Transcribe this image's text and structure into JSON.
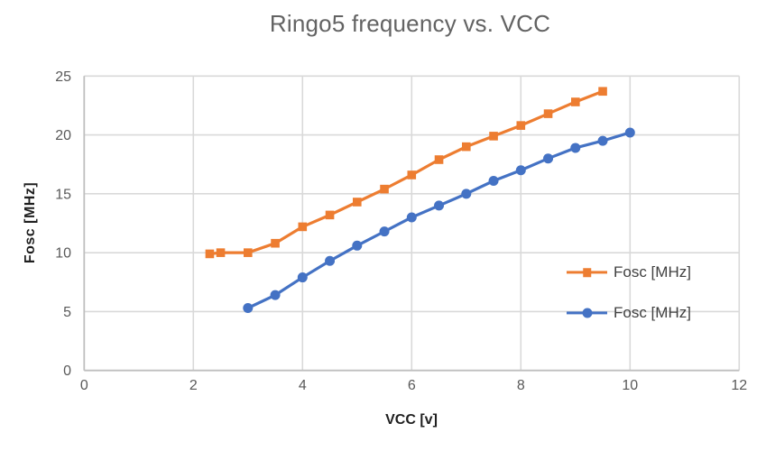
{
  "chart_data": {
    "type": "line",
    "title": "Ringo5 frequency vs. VCC",
    "xlabel": "VCC [v]",
    "ylabel": "Fosc [MHz]",
    "xlim": [
      0,
      12
    ],
    "ylim": [
      0,
      25
    ],
    "x_ticks": [
      0,
      2,
      4,
      6,
      8,
      10,
      12
    ],
    "y_ticks": [
      0,
      5,
      10,
      15,
      20,
      25
    ],
    "grid": true,
    "legend_position": "inside-right",
    "series": [
      {
        "name": "Fosc [MHz]",
        "marker": "square",
        "color": "#ED7D31",
        "x": [
          2.3,
          2.5,
          3,
          3.5,
          4,
          4.5,
          5,
          5.5,
          6,
          6.5,
          7,
          7.5,
          8,
          8.5,
          9,
          9.5
        ],
        "y": [
          9.9,
          10.0,
          10.0,
          10.8,
          12.2,
          13.2,
          14.3,
          15.4,
          16.6,
          17.9,
          19.0,
          19.9,
          20.8,
          21.8,
          22.8,
          23.7
        ]
      },
      {
        "name": "Fosc [MHz]",
        "marker": "circle",
        "color": "#4472C4",
        "x": [
          3,
          3.5,
          4,
          4.5,
          5,
          5.5,
          6,
          6.5,
          7,
          7.5,
          8,
          8.5,
          9,
          9.5,
          10
        ],
        "y": [
          5.3,
          6.4,
          7.9,
          9.3,
          10.6,
          11.8,
          13.0,
          14.0,
          15.0,
          16.1,
          17.0,
          18.0,
          18.9,
          19.5,
          20.2
        ]
      }
    ],
    "colors": {
      "gridline": "#D9D9D9",
      "axis_line": "#BFBFBF",
      "tick_label": "#595959",
      "title": "#636363",
      "axis_title": "#1F1F1F",
      "legend_text": "#404040",
      "background": "#FFFFFF"
    }
  }
}
